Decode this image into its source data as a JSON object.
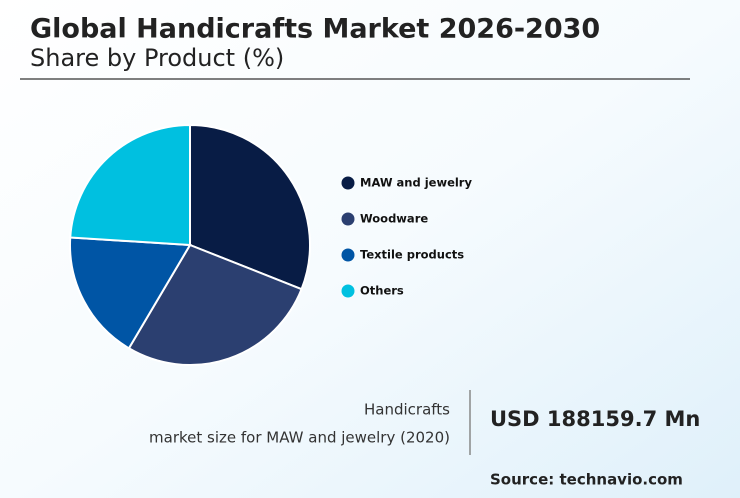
{
  "chart_data": {
    "type": "pie",
    "title": "Global Handicrafts Market 2026-2030",
    "subtitle": "Share by Product (%)",
    "categories": [
      "MAW and jewelry",
      "Woodware",
      "Textile products",
      "Others"
    ],
    "values": [
      31,
      27.5,
      17.5,
      24
    ],
    "colors": [
      "#081c45",
      "#2b3f70",
      "#0055a5",
      "#00c0e0"
    ],
    "annotation_lines": [
      "Handicrafts",
      "market size for MAW and jewelry (2020)"
    ],
    "annotation_value": "USD 188159.7 Mn",
    "source": "Source: technavio.com"
  }
}
